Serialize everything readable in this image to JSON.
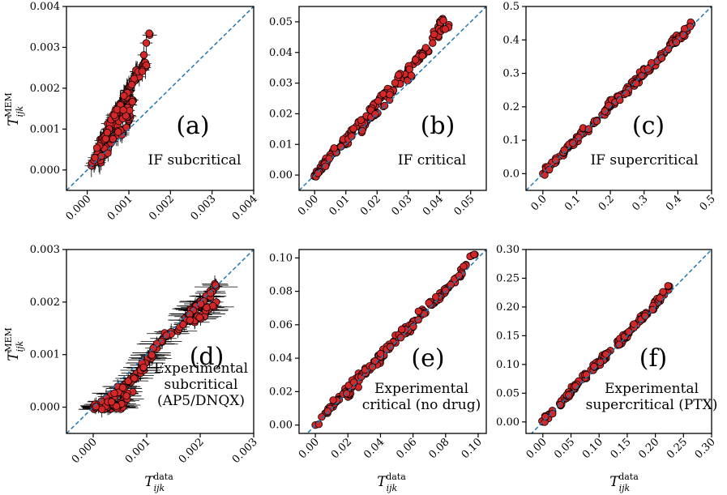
{
  "colors": {
    "marker_fill": "#d62728",
    "marker_edge": "#000000",
    "errorbar": "#000000",
    "diagonal": "#1f77b4"
  },
  "y_axis_title": {
    "base": "T",
    "sub": "ijk",
    "sup": "MEM"
  },
  "x_axis_title": {
    "base": "T",
    "sub": "ijk",
    "sup": "data"
  },
  "chart_data": [
    {
      "id": "a",
      "type": "scatter",
      "panel_label": "(a)",
      "annotation": [
        "IF subcritical"
      ],
      "xlim": [
        -0.0005,
        0.004
      ],
      "ylim": [
        -0.0005,
        0.004
      ],
      "xticks": [
        "0.000",
        "0.001",
        "0.002",
        "0.003",
        "0.004"
      ],
      "yticks": [
        "0.000",
        "0.001",
        "0.002",
        "0.003",
        "0.004"
      ],
      "xtick_values": [
        0,
        0.001,
        0.002,
        0.003,
        0.004
      ],
      "ytick_values": [
        0,
        0.001,
        0.002,
        0.003,
        0.004
      ],
      "reference_line": "y = x",
      "error_bars": true,
      "points": [
        [
          0.0001,
          0.0001
        ],
        [
          0.0002,
          0.0003
        ],
        [
          0.0003,
          0.0006
        ],
        [
          0.0004,
          0.0008
        ],
        [
          0.0005,
          0.001
        ],
        [
          0.0006,
          0.0012
        ],
        [
          0.0007,
          0.0014
        ],
        [
          0.0008,
          0.0016
        ],
        [
          0.0009,
          0.0018
        ],
        [
          0.001,
          0.002
        ],
        [
          0.0011,
          0.0022
        ],
        [
          0.0012,
          0.0024
        ],
        [
          0.0013,
          0.0025
        ],
        [
          0.0015,
          0.0033
        ],
        [
          0.0004,
          0.0004
        ],
        [
          0.0006,
          0.0007
        ],
        [
          0.0008,
          0.0009
        ],
        [
          0.001,
          0.0012
        ],
        [
          0.0003,
          0.0002
        ],
        [
          0.0005,
          0.0005
        ],
        [
          0.0007,
          0.001
        ],
        [
          0.0009,
          0.0014
        ],
        [
          0.0011,
          0.0017
        ],
        [
          0.0014,
          0.0026
        ]
      ]
    },
    {
      "id": "b",
      "type": "scatter",
      "panel_label": "(b)",
      "annotation": [
        "IF critical"
      ],
      "xlim": [
        -0.005,
        0.055
      ],
      "ylim": [
        -0.005,
        0.055
      ],
      "xticks": [
        "0.00",
        "0.01",
        "0.02",
        "0.03",
        "0.04",
        "0.05"
      ],
      "yticks": [
        "0.00",
        "0.01",
        "0.02",
        "0.03",
        "0.04",
        "0.05"
      ],
      "xtick_values": [
        0,
        0.01,
        0.02,
        0.03,
        0.04,
        0.05
      ],
      "ytick_values": [
        0,
        0.01,
        0.02,
        0.03,
        0.04,
        0.05
      ],
      "reference_line": "y = x",
      "error_bars": false,
      "points": [
        [
          0.0,
          0.0
        ],
        [
          0.003,
          0.004
        ],
        [
          0.006,
          0.007
        ],
        [
          0.009,
          0.011
        ],
        [
          0.012,
          0.014
        ],
        [
          0.015,
          0.018
        ],
        [
          0.018,
          0.021
        ],
        [
          0.021,
          0.025
        ],
        [
          0.024,
          0.028
        ],
        [
          0.027,
          0.032
        ],
        [
          0.03,
          0.035
        ],
        [
          0.033,
          0.038
        ],
        [
          0.036,
          0.041
        ],
        [
          0.04,
          0.048
        ],
        [
          0.041,
          0.051
        ],
        [
          0.043,
          0.049
        ],
        [
          0.01,
          0.01
        ],
        [
          0.02,
          0.02
        ],
        [
          0.03,
          0.031
        ],
        [
          0.015,
          0.015
        ],
        [
          0.025,
          0.027
        ],
        [
          0.035,
          0.04
        ]
      ]
    },
    {
      "id": "c",
      "type": "scatter",
      "panel_label": "(c)",
      "annotation": [
        "IF supercritical"
      ],
      "xlim": [
        -0.05,
        0.5
      ],
      "ylim": [
        -0.05,
        0.5
      ],
      "xticks": [
        "0.0",
        "0.1",
        "0.2",
        "0.3",
        "0.4",
        "0.5"
      ],
      "yticks": [
        "0.0",
        "0.1",
        "0.2",
        "0.3",
        "0.4",
        "0.5"
      ],
      "xtick_values": [
        0,
        0.1,
        0.2,
        0.3,
        0.4,
        0.5
      ],
      "ytick_values": [
        0,
        0.1,
        0.2,
        0.3,
        0.4,
        0.5
      ],
      "reference_line": "y = x",
      "error_bars": false,
      "points": [
        [
          0.0,
          0.0
        ],
        [
          0.03,
          0.03
        ],
        [
          0.06,
          0.06
        ],
        [
          0.09,
          0.09
        ],
        [
          0.12,
          0.12
        ],
        [
          0.15,
          0.15
        ],
        [
          0.18,
          0.18
        ],
        [
          0.21,
          0.21
        ],
        [
          0.24,
          0.24
        ],
        [
          0.27,
          0.27
        ],
        [
          0.3,
          0.3
        ],
        [
          0.33,
          0.33
        ],
        [
          0.36,
          0.36
        ],
        [
          0.39,
          0.39
        ],
        [
          0.42,
          0.42
        ],
        [
          0.44,
          0.45
        ],
        [
          0.1,
          0.11
        ],
        [
          0.2,
          0.21
        ],
        [
          0.3,
          0.31
        ],
        [
          0.4,
          0.41
        ]
      ]
    },
    {
      "id": "d",
      "type": "scatter",
      "panel_label": "(d)",
      "annotation": [
        "Experimental",
        "subcritical",
        "(AP5/DNQX)"
      ],
      "xlim": [
        -0.0005,
        0.003
      ],
      "ylim": [
        -0.0005,
        0.003
      ],
      "xticks": [
        "0.000",
        "0.001",
        "0.002",
        "0.003"
      ],
      "yticks": [
        "0.000",
        "0.001",
        "0.002",
        "0.003"
      ],
      "xtick_values": [
        0,
        0.001,
        0.002,
        0.003
      ],
      "ytick_values": [
        0,
        0.001,
        0.002,
        0.003
      ],
      "reference_line": "y = x",
      "error_bars": true,
      "points": [
        [
          0.0,
          0.0
        ],
        [
          0.0001,
          0.0
        ],
        [
          0.0002,
          0.0
        ],
        [
          0.0003,
          0.0
        ],
        [
          0.0004,
          0.0
        ],
        [
          0.0005,
          0.0
        ],
        [
          0.0003,
          0.0001
        ],
        [
          0.0004,
          0.0002
        ],
        [
          0.0005,
          0.0003
        ],
        [
          0.0006,
          0.0004
        ],
        [
          0.0007,
          0.0005
        ],
        [
          0.0008,
          0.0006
        ],
        [
          0.0009,
          0.0008
        ],
        [
          0.001,
          0.0009
        ],
        [
          0.0011,
          0.001
        ],
        [
          0.0012,
          0.0012
        ],
        [
          0.0013,
          0.0013
        ],
        [
          0.0014,
          0.0014
        ],
        [
          0.0017,
          0.0016
        ],
        [
          0.0018,
          0.0017
        ],
        [
          0.0019,
          0.0019
        ],
        [
          0.002,
          0.002
        ],
        [
          0.0021,
          0.0021
        ],
        [
          0.0022,
          0.0022
        ],
        [
          0.0023,
          0.0023
        ],
        [
          0.0021,
          0.0018
        ],
        [
          0.0022,
          0.0019
        ],
        [
          0.0023,
          0.002
        ]
      ]
    },
    {
      "id": "e",
      "type": "scatter",
      "panel_label": "(e)",
      "annotation": [
        "Experimental",
        "critical (no drug)"
      ],
      "xlim": [
        -0.01,
        0.105
      ],
      "ylim": [
        -0.005,
        0.105
      ],
      "xticks": [
        "0.00",
        "0.02",
        "0.04",
        "0.06",
        "0.08",
        "0.10"
      ],
      "yticks": [
        "0.00",
        "0.02",
        "0.04",
        "0.06",
        "0.08",
        "0.10"
      ],
      "xtick_values": [
        0,
        0.02,
        0.04,
        0.06,
        0.08,
        0.1
      ],
      "ytick_values": [
        0,
        0.02,
        0.04,
        0.06,
        0.08,
        0.1
      ],
      "reference_line": "y = x",
      "error_bars": false,
      "points": [
        [
          0.0,
          0.0
        ],
        [
          0.006,
          0.007
        ],
        [
          0.012,
          0.014
        ],
        [
          0.018,
          0.02
        ],
        [
          0.024,
          0.026
        ],
        [
          0.03,
          0.032
        ],
        [
          0.036,
          0.038
        ],
        [
          0.042,
          0.044
        ],
        [
          0.048,
          0.05
        ],
        [
          0.054,
          0.056
        ],
        [
          0.06,
          0.062
        ],
        [
          0.066,
          0.068
        ],
        [
          0.072,
          0.073
        ],
        [
          0.078,
          0.079
        ],
        [
          0.084,
          0.085
        ],
        [
          0.09,
          0.091
        ],
        [
          0.098,
          0.102
        ],
        [
          0.02,
          0.018
        ],
        [
          0.04,
          0.039
        ],
        [
          0.06,
          0.059
        ],
        [
          0.08,
          0.08
        ]
      ]
    },
    {
      "id": "f",
      "type": "scatter",
      "panel_label": "(f)",
      "annotation": [
        "Experimental",
        "supercritical (PTX)"
      ],
      "xlim": [
        -0.03,
        0.3
      ],
      "ylim": [
        -0.02,
        0.3
      ],
      "xticks": [
        "0.00",
        "0.05",
        "0.10",
        "0.15",
        "0.20",
        "0.25",
        "0.30"
      ],
      "yticks": [
        "0.00",
        "0.05",
        "0.10",
        "0.15",
        "0.20",
        "0.25",
        "0.30"
      ],
      "xtick_values": [
        0,
        0.05,
        0.1,
        0.15,
        0.2,
        0.25,
        0.3
      ],
      "ytick_values": [
        0,
        0.05,
        0.1,
        0.15,
        0.2,
        0.25,
        0.3
      ],
      "reference_line": "y = x",
      "error_bars": false,
      "points": [
        [
          0.0,
          0.0
        ],
        [
          0.015,
          0.016
        ],
        [
          0.03,
          0.032
        ],
        [
          0.045,
          0.048
        ],
        [
          0.06,
          0.064
        ],
        [
          0.075,
          0.079
        ],
        [
          0.09,
          0.094
        ],
        [
          0.105,
          0.109
        ],
        [
          0.12,
          0.124
        ],
        [
          0.135,
          0.139
        ],
        [
          0.15,
          0.154
        ],
        [
          0.165,
          0.169
        ],
        [
          0.18,
          0.184
        ],
        [
          0.195,
          0.199
        ],
        [
          0.21,
          0.215
        ],
        [
          0.225,
          0.236
        ],
        [
          0.05,
          0.05
        ],
        [
          0.1,
          0.102
        ],
        [
          0.15,
          0.151
        ],
        [
          0.2,
          0.202
        ]
      ]
    }
  ]
}
